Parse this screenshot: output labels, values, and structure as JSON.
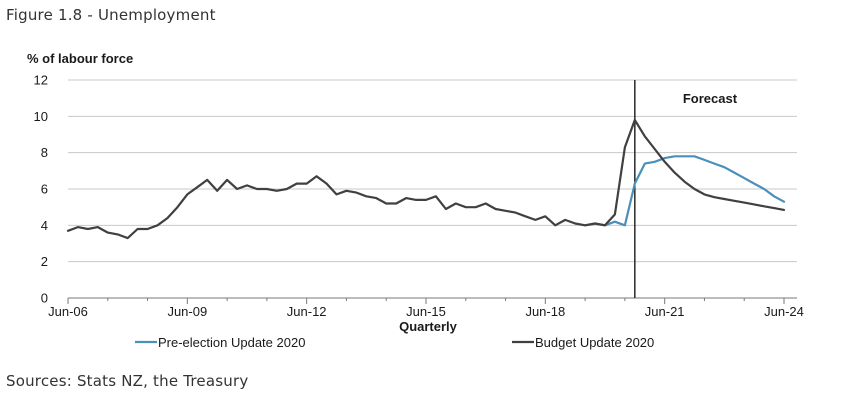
{
  "figure": {
    "title": "Figure 1.8 - Unemployment",
    "source": "Sources: Stats NZ, the Treasury"
  },
  "chart_data": {
    "type": "line",
    "title": "Figure 1.8 - Unemployment",
    "ylabel": "% of labour force",
    "xlabel": "Quarterly",
    "ylim": [
      0,
      12
    ],
    "yticks": [
      "0",
      "2",
      "4",
      "6",
      "8",
      "10",
      "12"
    ],
    "xticks": [
      "Jun-06",
      "Jun-09",
      "Jun-12",
      "Jun-15",
      "Jun-18",
      "Jun-21",
      "Jun-24"
    ],
    "grid": "horizontal",
    "annotation": {
      "text": "Forecast",
      "x_value": "Sep-20"
    },
    "legend_position": "bottom",
    "colors": {
      "pre_election": "#4a90b8",
      "budget": "#404040"
    },
    "series": [
      {
        "name": "Pre-election Update 2020",
        "x": [
          "Jun-19",
          "Sep-19",
          "Dec-19",
          "Mar-20",
          "Jun-20",
          "Sep-20",
          "Dec-20",
          "Mar-21",
          "Jun-21",
          "Sep-21",
          "Dec-21",
          "Mar-22",
          "Jun-22",
          "Sep-22",
          "Dec-22",
          "Mar-23",
          "Jun-23",
          "Sep-23",
          "Dec-23",
          "Mar-24",
          "Jun-24"
        ],
        "values": [
          4.0,
          4.1,
          4.0,
          4.2,
          4.0,
          6.3,
          7.4,
          7.5,
          7.7,
          7.8,
          7.8,
          7.8,
          7.6,
          7.4,
          7.2,
          6.9,
          6.6,
          6.3,
          6.0,
          5.6,
          5.3
        ]
      },
      {
        "name": "Budget Update 2020",
        "x": [
          "Jun-06",
          "Sep-06",
          "Dec-06",
          "Mar-07",
          "Jun-07",
          "Sep-07",
          "Dec-07",
          "Mar-08",
          "Jun-08",
          "Sep-08",
          "Dec-08",
          "Mar-09",
          "Jun-09",
          "Sep-09",
          "Dec-09",
          "Mar-10",
          "Jun-10",
          "Sep-10",
          "Dec-10",
          "Mar-11",
          "Jun-11",
          "Sep-11",
          "Dec-11",
          "Mar-12",
          "Jun-12",
          "Sep-12",
          "Dec-12",
          "Mar-13",
          "Jun-13",
          "Sep-13",
          "Dec-13",
          "Mar-14",
          "Jun-14",
          "Sep-14",
          "Dec-14",
          "Mar-15",
          "Jun-15",
          "Sep-15",
          "Dec-15",
          "Mar-16",
          "Jun-16",
          "Sep-16",
          "Dec-16",
          "Mar-17",
          "Jun-17",
          "Sep-17",
          "Dec-17",
          "Mar-18",
          "Jun-18",
          "Sep-18",
          "Dec-18",
          "Mar-19",
          "Jun-19",
          "Sep-19",
          "Dec-19",
          "Mar-20",
          "Jun-20",
          "Sep-20",
          "Dec-20",
          "Mar-21",
          "Jun-21",
          "Sep-21",
          "Dec-21",
          "Mar-22",
          "Jun-22",
          "Sep-22",
          "Dec-22",
          "Mar-23",
          "Jun-23",
          "Sep-23",
          "Dec-23",
          "Mar-24",
          "Jun-24"
        ],
        "values": [
          3.7,
          3.9,
          3.8,
          3.9,
          3.6,
          3.5,
          3.3,
          3.8,
          3.8,
          4.0,
          4.4,
          5.0,
          5.7,
          6.1,
          6.5,
          5.9,
          6.5,
          6.0,
          6.2,
          6.0,
          6.0,
          5.9,
          6.0,
          6.3,
          6.3,
          6.7,
          6.3,
          5.7,
          5.9,
          5.8,
          5.6,
          5.5,
          5.2,
          5.2,
          5.5,
          5.4,
          5.4,
          5.6,
          4.9,
          5.2,
          5.0,
          5.0,
          5.2,
          4.9,
          4.8,
          4.7,
          4.5,
          4.3,
          4.5,
          4.0,
          4.3,
          4.1,
          4.0,
          4.1,
          4.0,
          4.6,
          8.3,
          9.8,
          8.9,
          8.2,
          7.5,
          6.9,
          6.4,
          6.0,
          5.7,
          5.55,
          5.45,
          5.35,
          5.25,
          5.15,
          5.05,
          4.95,
          4.85
        ]
      }
    ]
  }
}
